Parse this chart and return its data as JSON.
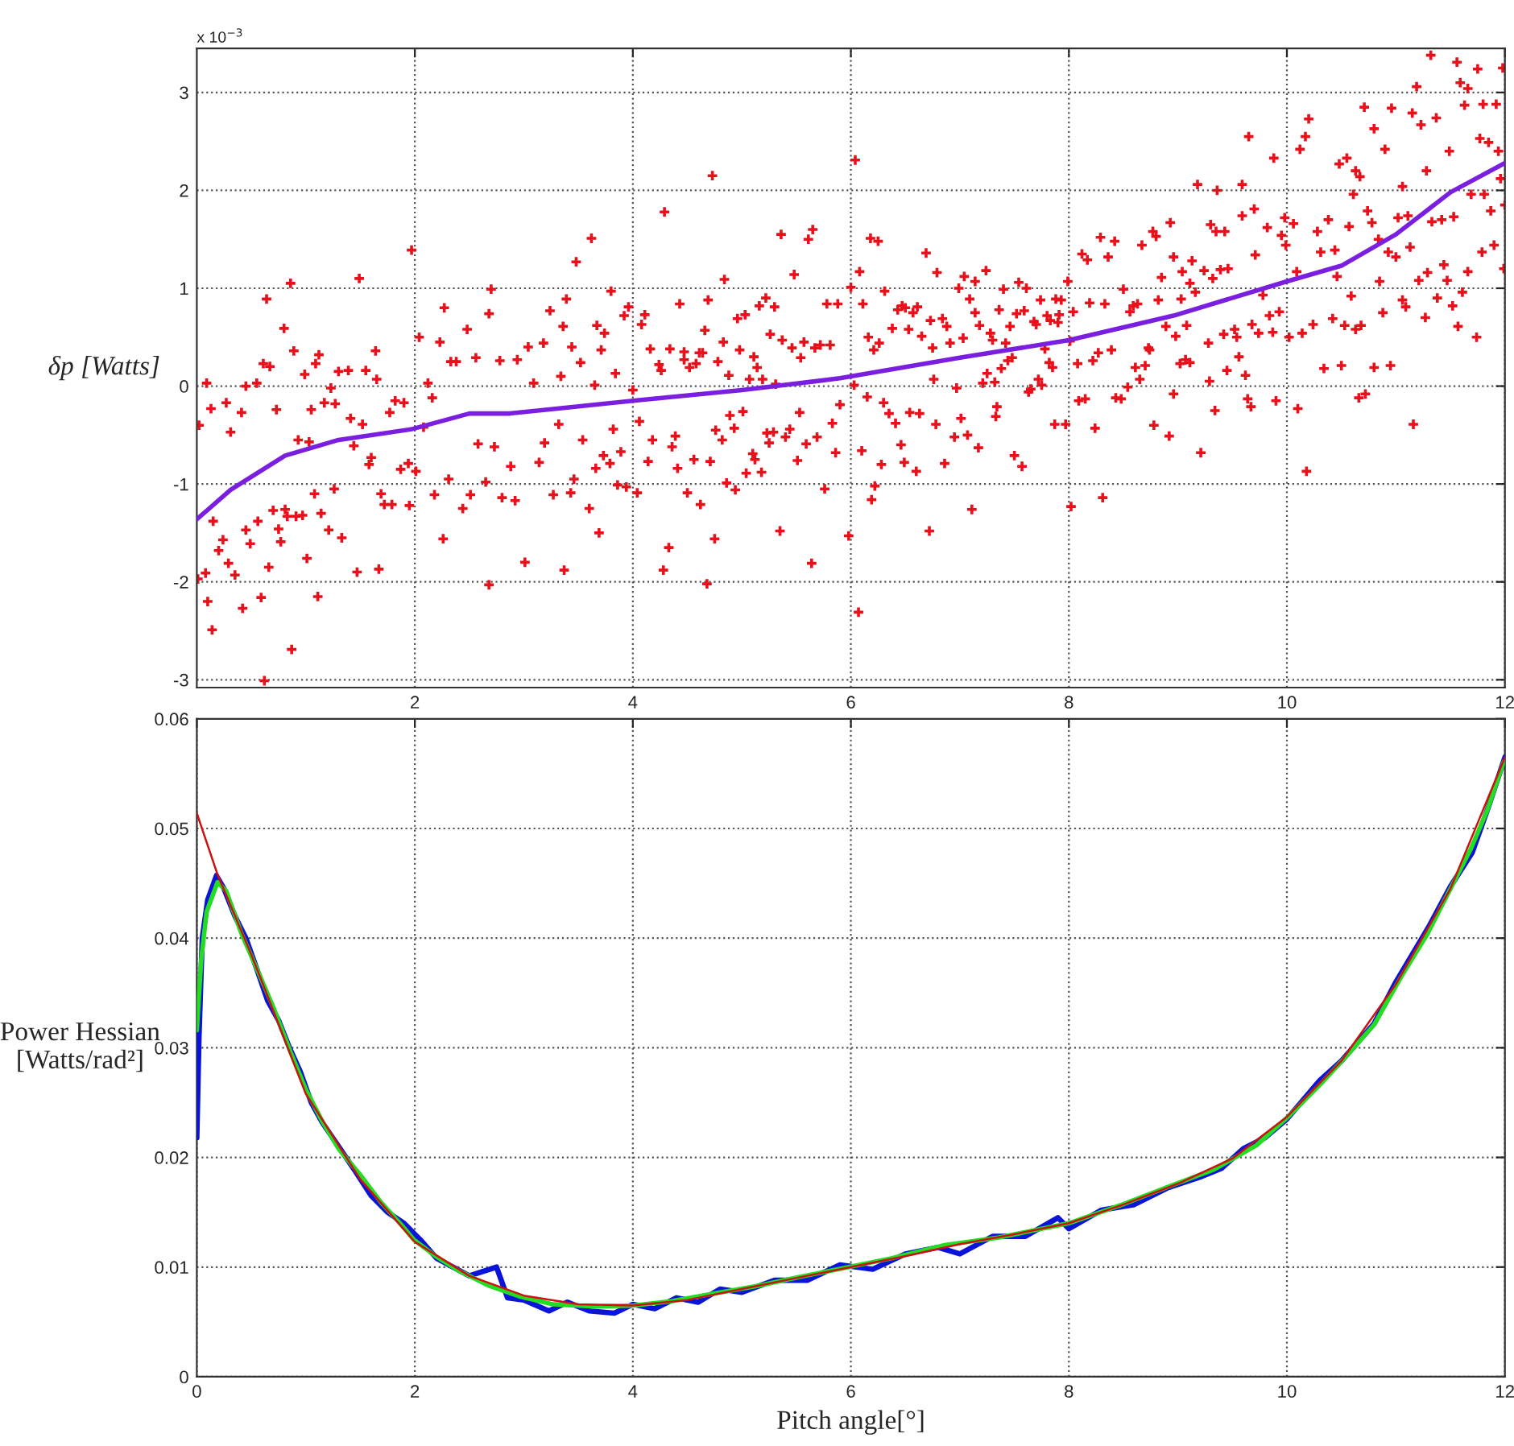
{
  "chart_data": [
    {
      "type": "scatter",
      "ylabel": "δp [Watts]",
      "annotations": [
        "x 10$^{−3}$"
      ],
      "xlim": [
        0,
        12
      ],
      "xticks": [
        2,
        4,
        6,
        8,
        10,
        12
      ],
      "ylim": [
        -3.08,
        3.45
      ],
      "yticks": [
        -3,
        -2,
        -1,
        0,
        1,
        2,
        3
      ],
      "grid": true,
      "series": [
        {
          "type": "scatter",
          "color": "#e8101a",
          "marker": "cross",
          "x": [
            0.02,
            0.09,
            0.01,
            0.08,
            0.1,
            0.14,
            0.13,
            0.15,
            0.2,
            0.24,
            0.27,
            0.29,
            0.31,
            0.35,
            0.41,
            0.42,
            0.45,
            0.45,
            0.49,
            0.55,
            0.56,
            0.59,
            0.61,
            0.64,
            0.62,
            0.66,
            0.67,
            0.7,
            0.73,
            0.75,
            0.77,
            0.8,
            0.81,
            0.83,
            0.86,
            0.87,
            0.89,
            0.91,
            0.93,
            0.97,
            0.99,
            1.01,
            1.03,
            1.05,
            1.08,
            1.09,
            1.11,
            1.12,
            1.14,
            1.17,
            1.21,
            1.23,
            1.26,
            1.27,
            1.3,
            1.33,
            1.39,
            1.41,
            1.44,
            1.47,
            1.49,
            1.52,
            1.55,
            1.58,
            1.6,
            1.64,
            1.65,
            1.67,
            1.69,
            1.72,
            1.77,
            1.79,
            1.82,
            1.87,
            1.9,
            1.94,
            1.95,
            1.97,
            2.01,
            2.04,
            2.08,
            2.12,
            2.16,
            2.18,
            2.23,
            2.26,
            2.27,
            2.31,
            2.33,
            2.38,
            2.44,
            2.48,
            2.51,
            2.56,
            2.58,
            2.65,
            2.68,
            2.7,
            2.68,
            2.73,
            2.78,
            2.8,
            2.88,
            2.92,
            2.94,
            3.01,
            3.04,
            3.09,
            3.14,
            3.18,
            3.19,
            3.24,
            3.27,
            3.32,
            3.34,
            3.36,
            3.37,
            3.39,
            3.43,
            3.44,
            3.46,
            3.48,
            3.52,
            3.54,
            3.6,
            3.62,
            3.65,
            3.66,
            3.67,
            3.69,
            3.71,
            3.73,
            3.74,
            3.79,
            3.8,
            3.82,
            3.84,
            3.86,
            3.89,
            3.92,
            3.94,
            3.96,
            4.0,
            4.04,
            4.06,
            4.08,
            4.11,
            4.14,
            4.16,
            4.18,
            4.24,
            4.26,
            4.28,
            4.29,
            4.33,
            4.34,
            4.36,
            4.39,
            4.41,
            4.43,
            4.47,
            4.47,
            4.5,
            4.52,
            4.56,
            4.58,
            4.61,
            4.62,
            4.64,
            4.66,
            4.68,
            4.69,
            4.71,
            4.73,
            4.75,
            4.76,
            4.78,
            4.82,
            4.83,
            4.84,
            4.86,
            4.88,
            4.89,
            4.93,
            4.94,
            4.96,
            4.98,
            5.01,
            5.03,
            5.04,
            5.07,
            5.1,
            5.11,
            5.12,
            5.14,
            5.16,
            5.18,
            5.19,
            5.22,
            5.23,
            5.25,
            5.26,
            5.29,
            5.3,
            5.31,
            5.35,
            5.36,
            5.37,
            5.4,
            5.44,
            5.46,
            5.48,
            5.51,
            5.53,
            5.54,
            5.57,
            5.59,
            5.61,
            5.64,
            5.65,
            5.67,
            5.69,
            5.72,
            5.76,
            5.78,
            5.81,
            5.83,
            5.86,
            5.88,
            5.9,
            5.98,
            6.0,
            6.04,
            6.03,
            6.07,
            6.08,
            6.1,
            6.11,
            6.15,
            6.16,
            6.18,
            6.19,
            6.21,
            6.22,
            6.25,
            6.26,
            6.28,
            6.3,
            6.31,
            6.35,
            6.38,
            6.41,
            6.43,
            6.46,
            6.47,
            6.49,
            6.5,
            6.53,
            6.54,
            6.57,
            6.6,
            6.61,
            6.63,
            6.65,
            6.69,
            6.72,
            6.73,
            6.75,
            6.76,
            6.78,
            6.79,
            6.84,
            6.86,
            6.88,
            6.91,
            6.95,
            6.97,
            6.99,
            7.01,
            7.03,
            7.04,
            7.07,
            7.09,
            7.11,
            7.14,
            7.14,
            7.17,
            7.18,
            7.21,
            7.24,
            7.25,
            7.28,
            7.3,
            7.32,
            7.33,
            7.34,
            7.36,
            7.38,
            7.4,
            7.42,
            7.44,
            7.46,
            7.48,
            7.5,
            7.52,
            7.54,
            7.57,
            7.59,
            7.61,
            7.63,
            7.65,
            7.68,
            7.7,
            7.72,
            7.74,
            7.75,
            7.78,
            7.8,
            7.82,
            7.83,
            7.85,
            7.87,
            7.88,
            7.9,
            7.91,
            7.93,
            7.97,
            7.99,
            8.01,
            8.02,
            8.04,
            8.08,
            8.09,
            8.12,
            8.15,
            8.17,
            8.19,
            8.22,
            8.24,
            8.27,
            8.29,
            8.31,
            8.33,
            8.36,
            8.39,
            8.42,
            8.43,
            8.48,
            8.5,
            8.54,
            8.56,
            8.59,
            8.61,
            8.63,
            8.65,
            8.67,
            8.7,
            8.73,
            8.74,
            8.77,
            8.78,
            8.8,
            8.82,
            8.85,
            8.89,
            8.92,
            8.93,
            8.96,
            8.96,
            8.98,
            9.04,
            9.03,
            9.08,
            9.02,
            9.07,
            9.11,
            9.11,
            9.13,
            9.18,
            9.16,
            9.21,
            9.24,
            9.28,
            9.29,
            9.3,
            9.32,
            9.34,
            9.36,
            9.35,
            9.39,
            9.42,
            9.43,
            9.45,
            9.46,
            9.52,
            9.54,
            9.56,
            9.59,
            9.59,
            9.62,
            9.65,
            9.64,
            9.67,
            9.68,
            9.71,
            9.7,
            9.74,
            9.78,
            9.82,
            9.84,
            9.87,
            9.88,
            9.9,
            9.93,
            9.95,
            9.98,
            9.99,
            10.02,
            10.06,
            10.09,
            10.1,
            10.12,
            10.14,
            10.17,
            10.18,
            10.2,
            10.24,
            10.28,
            10.31,
            10.34,
            10.38,
            10.42,
            10.44,
            10.46,
            10.48,
            10.5,
            10.53,
            10.55,
            10.57,
            10.59,
            10.61,
            10.63,
            10.63,
            10.66,
            10.67,
            10.68,
            10.71,
            10.72,
            10.74,
            10.78,
            10.8,
            10.8,
            10.84,
            10.85,
            10.88,
            10.9,
            10.93,
            10.95,
            10.96,
            11.0,
            11.02,
            11.06,
            11.06,
            11.09,
            11.11,
            11.13,
            11.15,
            11.16,
            11.19,
            11.21,
            11.23,
            11.27,
            11.28,
            11.29,
            11.32,
            11.33,
            11.37,
            11.38,
            11.42,
            11.44,
            11.47,
            11.49,
            11.52,
            11.53,
            11.56,
            11.57,
            11.59,
            11.61,
            11.63,
            11.66,
            11.66,
            11.69,
            11.74,
            11.75,
            11.77,
            11.79,
            11.8,
            11.81,
            11.85,
            11.87,
            11.9,
            11.92,
            11.94,
            11.96,
            11.98,
            12.0,
            11.99
          ],
          "values": [
            -0.4,
            0.03,
            -1.97,
            -1.91,
            -2.2,
            -2.49,
            -0.23,
            -1.38,
            -1.68,
            -1.57,
            -0.17,
            -1.81,
            -0.47,
            -1.93,
            -0.27,
            -2.27,
            0.0,
            -1.47,
            -1.61,
            0.03,
            -1.38,
            -2.16,
            0.23,
            0.89,
            -3.01,
            -1.85,
            0.2,
            -1.27,
            -0.24,
            -1.46,
            -1.59,
            0.59,
            -1.26,
            -1.33,
            1.05,
            -2.69,
            0.36,
            -1.33,
            -0.55,
            -1.32,
            0.12,
            -1.76,
            -0.57,
            -0.24,
            -1.1,
            0.23,
            -2.15,
            0.32,
            -1.3,
            -0.17,
            -1.47,
            -0.02,
            -1.05,
            -0.18,
            0.15,
            -1.55,
            0.16,
            -0.33,
            -0.61,
            -1.9,
            1.1,
            -0.39,
            0.16,
            -0.8,
            -0.73,
            0.36,
            0.07,
            -1.87,
            -1.1,
            -1.21,
            -0.27,
            -1.21,
            -0.15,
            -0.85,
            -0.17,
            -0.79,
            -1.22,
            1.39,
            -0.87,
            0.5,
            -0.42,
            0.03,
            -0.12,
            -1.11,
            0.45,
            -1.56,
            0.8,
            -0.95,
            0.25,
            0.25,
            -1.25,
            0.58,
            -1.11,
            0.29,
            -0.59,
            -0.98,
            -2.03,
            0.99,
            0.74,
            -0.62,
            0.26,
            -1.14,
            -0.82,
            -1.17,
            0.27,
            -1.8,
            0.4,
            0.03,
            -0.78,
            0.44,
            -0.58,
            0.77,
            -1.11,
            -0.39,
            0.1,
            0.61,
            -1.88,
            0.89,
            -1.09,
            0.4,
            -0.95,
            1.27,
            0.24,
            -0.55,
            -1.25,
            1.51,
            0.01,
            -0.84,
            0.62,
            -1.5,
            0.37,
            -0.71,
            0.54,
            -0.79,
            0.97,
            -0.44,
            0.13,
            -1.01,
            -0.67,
            0.72,
            -1.03,
            0.81,
            -0.04,
            -1.09,
            -0.36,
            0.63,
            0.73,
            -0.77,
            0.38,
            -0.55,
            0.22,
            0.16,
            -1.88,
            1.78,
            -1.65,
            0.38,
            -0.62,
            -0.51,
            -0.84,
            0.84,
            0.27,
            0.35,
            -1.09,
            0.19,
            -0.75,
            0.23,
            0.34,
            -1.21,
            0.34,
            0.57,
            -2.02,
            0.88,
            -0.77,
            2.15,
            -1.56,
            -0.45,
            0.25,
            -0.55,
            0.45,
            1.09,
            -0.99,
            0.11,
            -0.3,
            -0.43,
            -1.06,
            0.69,
            0.37,
            -0.26,
            0.73,
            -0.89,
            0.07,
            -0.69,
            0.3,
            -0.75,
            0.19,
            0.82,
            -0.88,
            0.07,
            0.9,
            -0.48,
            -0.58,
            0.53,
            -0.47,
            0.81,
            0.02,
            -1.48,
            1.55,
            0.47,
            -0.52,
            -0.44,
            0.39,
            1.14,
            -0.76,
            -0.27,
            0.29,
            0.45,
            -0.59,
            1.5,
            -1.81,
            1.6,
            0.39,
            -0.52,
            0.42,
            -1.05,
            0.84,
            0.42,
            -0.38,
            -0.68,
            0.84,
            -0.19,
            -1.53,
            1.01,
            2.31,
            0.01,
            -2.31,
            1.17,
            -0.66,
            0.84,
            -0.11,
            0.5,
            1.51,
            -1.16,
            0.37,
            -1.02,
            1.48,
            0.44,
            -0.8,
            -0.17,
            0.97,
            -0.28,
            0.59,
            -0.38,
            0.78,
            -0.6,
            0.82,
            -0.78,
            0.8,
            0.58,
            -0.27,
            0.75,
            -0.87,
            0.81,
            -0.28,
            0.51,
            1.36,
            -1.48,
            0.67,
            0.39,
            0.07,
            -0.39,
            1.16,
            0.69,
            -0.79,
            0.61,
            0.44,
            -0.52,
            -0.02,
            1.0,
            -0.33,
            0.49,
            1.12,
            -0.5,
            0.89,
            -1.26,
            1.07,
            0.75,
            -0.63,
            0.62,
            0.03,
            1.18,
            0.13,
            0.54,
            0.47,
            0.04,
            -0.31,
            -0.21,
            0.78,
            0.18,
            0.99,
            0.44,
            0.26,
            0.61,
            0.29,
            -0.71,
            0.74,
            1.06,
            -0.82,
            0.77,
            1.0,
            -0.06,
            -0.03,
            0.66,
            0.63,
            0.07,
            0.88,
            0.01,
            0.38,
            0.72,
            0.24,
            0.67,
            0.19,
            -0.39,
            0.89,
            0.65,
            0.73,
            0.88,
            -0.39,
            1.07,
            0.46,
            -1.23,
            0.76,
            0.23,
            -0.15,
            1.35,
            -0.13,
            1.29,
            0.85,
            0.26,
            -0.43,
            0.34,
            1.52,
            -1.14,
            0.84,
            1.32,
            0.37,
            1.48,
            -0.12,
            -0.13,
            0.99,
            -0.01,
            0.76,
            0.82,
            0.19,
            0.84,
            0.07,
            1.44,
            0.21,
            0.39,
            0.37,
            1.58,
            -0.4,
            1.53,
            0.88,
            1.11,
            0.61,
            -0.51,
            1.67,
            1.32,
            -0.08,
            0.51,
            1.17,
            0.89,
            0.62,
            0.23,
            0.27,
            1.05,
            0.24,
            1.28,
            2.06,
            0.96,
            -0.68,
            1.18,
            0.44,
            0.05,
            1.65,
            1.1,
            -0.25,
            2.0,
            1.58,
            1.19,
            0.53,
            1.58,
            0.16,
            1.2,
            0.58,
            0.5,
            0.3,
            2.06,
            1.74,
            0.11,
            2.55,
            -0.13,
            -0.21,
            0.63,
            1.34,
            1.81,
            0.54,
            0.93,
            1.62,
            0.72,
            0.55,
            2.33,
            -0.15,
            0.76,
            1.54,
            1.72,
            1.44,
            0.5,
            1.66,
            1.17,
            -0.23,
            2.42,
            0.54,
            2.55,
            -0.87,
            2.73,
            0.63,
            1.58,
            1.37,
            0.18,
            1.7,
            0.69,
            1.39,
            1.12,
            2.27,
            0.21,
            0.62,
            2.33,
            1.63,
            0.92,
            1.96,
            0.58,
            2.2,
            -0.12,
            2.14,
            0.62,
            2.85,
            -0.08,
            1.79,
            1.67,
            2.63,
            0.19,
            1.5,
            1.07,
            0.75,
            2.42,
            1.37,
            0.21,
            2.84,
            1.32,
            1.72,
            2.04,
            0.88,
            0.81,
            1.74,
            1.42,
            2.79,
            -0.39,
            3.06,
            1.08,
            2.67,
            0.7,
            2.2,
            1.16,
            3.38,
            1.68,
            2.74,
            0.9,
            1.7,
            1.24,
            1.08,
            2.4,
            0.82,
            1.73,
            3.31,
            0.61,
            3.1,
            0.96,
            2.87,
            1.17,
            3.04,
            1.96,
            0.5,
            3.24,
            2.53,
            1.37,
            2.88,
            1.96,
            2.49,
            1.79,
            1.44,
            2.88,
            2.4,
            2.12,
            3.25,
            1.85,
            1.2
          ]
        },
        {
          "type": "line",
          "color": "#7a1fe0",
          "x": [
            0,
            0.31,
            0.81,
            1.3,
            1.97,
            2.5,
            2.87,
            4.0,
            5.0,
            5.9,
            7.0,
            8.0,
            8.96,
            10.0,
            10.5,
            11.0,
            11.5,
            12.0
          ],
          "values": [
            -1.36,
            -1.06,
            -0.71,
            -0.55,
            -0.44,
            -0.28,
            -0.28,
            -0.15,
            -0.04,
            0.08,
            0.29,
            0.47,
            0.72,
            1.07,
            1.23,
            1.55,
            1.98,
            2.28
          ]
        }
      ]
    },
    {
      "type": "line",
      "xlabel": "Pitch angle[°]",
      "ylabel": "Power Hessian\n[Watts/rad²]",
      "xlim": [
        0,
        12
      ],
      "xticks": [
        0,
        2,
        4,
        6,
        8,
        10,
        12
      ],
      "ylim": [
        0,
        0.06
      ],
      "yticks": [
        0,
        0.01,
        0.02,
        0.03,
        0.04,
        0.05,
        0.06
      ],
      "grid": true,
      "series": [
        {
          "color": "#0a14d8",
          "x": [
            0,
            0.02,
            0.05,
            0.1,
            0.18,
            0.25,
            0.35,
            0.45,
            0.55,
            0.65,
            0.75,
            0.85,
            0.95,
            1.05,
            1.15,
            1.3,
            1.45,
            1.6,
            1.75,
            1.9,
            2.05,
            2.2,
            2.35,
            2.5,
            2.75,
            2.85,
            3.0,
            3.23,
            3.4,
            3.6,
            3.83,
            4.0,
            4.2,
            4.4,
            4.6,
            4.8,
            5.0,
            5.3,
            5.6,
            5.9,
            6.2,
            6.5,
            6.8,
            7.0,
            7.3,
            7.6,
            7.9,
            8.0,
            8.3,
            8.6,
            8.9,
            9.2,
            9.4,
            9.6,
            9.8,
            10.0,
            10.3,
            10.5,
            10.8,
            11.0,
            11.3,
            11.5,
            11.7,
            11.85,
            12.0
          ],
          "values": [
            0.0218,
            0.031,
            0.04,
            0.0435,
            0.0457,
            0.0445,
            0.042,
            0.04,
            0.0372,
            0.0343,
            0.0325,
            0.03,
            0.0278,
            0.025,
            0.0232,
            0.021,
            0.0188,
            0.0165,
            0.015,
            0.014,
            0.0125,
            0.0108,
            0.01,
            0.0092,
            0.01,
            0.0072,
            0.007,
            0.006,
            0.0068,
            0.006,
            0.0058,
            0.0066,
            0.0062,
            0.0072,
            0.0068,
            0.008,
            0.0077,
            0.0088,
            0.0088,
            0.0102,
            0.0098,
            0.0112,
            0.0118,
            0.0112,
            0.0128,
            0.0128,
            0.0145,
            0.0135,
            0.0152,
            0.0157,
            0.0172,
            0.0182,
            0.019,
            0.0208,
            0.0218,
            0.0235,
            0.027,
            0.0288,
            0.0322,
            0.036,
            0.041,
            0.0447,
            0.0478,
            0.052,
            0.0565
          ]
        },
        {
          "color": "#22dd22",
          "x": [
            0,
            0.04,
            0.09,
            0.19,
            0.27,
            0.41,
            0.56,
            0.71,
            0.86,
            1.0,
            1.15,
            1.3,
            1.5,
            1.69,
            1.89,
            1.99,
            2.19,
            2.38,
            2.68,
            2.97,
            3.27,
            3.66,
            4.01,
            4.36,
            4.75,
            5.15,
            5.53,
            5.98,
            6.37,
            6.86,
            7.36,
            8.0,
            8.49,
            8.93,
            9.33,
            9.72,
            10.02,
            10.31,
            10.56,
            10.8,
            11.05,
            11.29,
            11.49,
            11.69,
            11.84,
            11.99
          ],
          "values": [
            0.0316,
            0.038,
            0.0424,
            0.0451,
            0.0443,
            0.0404,
            0.037,
            0.0335,
            0.0296,
            0.0262,
            0.0233,
            0.0208,
            0.0184,
            0.0159,
            0.0137,
            0.0125,
            0.011,
            0.0098,
            0.0083,
            0.0073,
            0.0066,
            0.0064,
            0.0065,
            0.0069,
            0.0076,
            0.0083,
            0.0091,
            0.01,
            0.0108,
            0.012,
            0.0127,
            0.014,
            0.0157,
            0.0174,
            0.0189,
            0.0211,
            0.0238,
            0.0267,
            0.0294,
            0.0321,
            0.0365,
            0.0404,
            0.0443,
            0.0482,
            0.0517,
            0.0561
          ]
        },
        {
          "color": "#d01010",
          "x": [
            0,
            0.19,
            0.5,
            1.0,
            1.5,
            2,
            2.5,
            3,
            3.5,
            4,
            4.5,
            5,
            5.5,
            6,
            6.5,
            7,
            7.5,
            8,
            8.5,
            9,
            9.5,
            10,
            10.5,
            11,
            11.5,
            12
          ],
          "values": [
            0.0514,
            0.0458,
            0.0385,
            0.0258,
            0.018,
            0.0123,
            0.0092,
            0.0074,
            0.0066,
            0.0065,
            0.007,
            0.008,
            0.009,
            0.01,
            0.011,
            0.0121,
            0.013,
            0.014,
            0.0157,
            0.0176,
            0.0199,
            0.0237,
            0.0288,
            0.0358,
            0.0445,
            0.0565
          ]
        }
      ]
    }
  ]
}
